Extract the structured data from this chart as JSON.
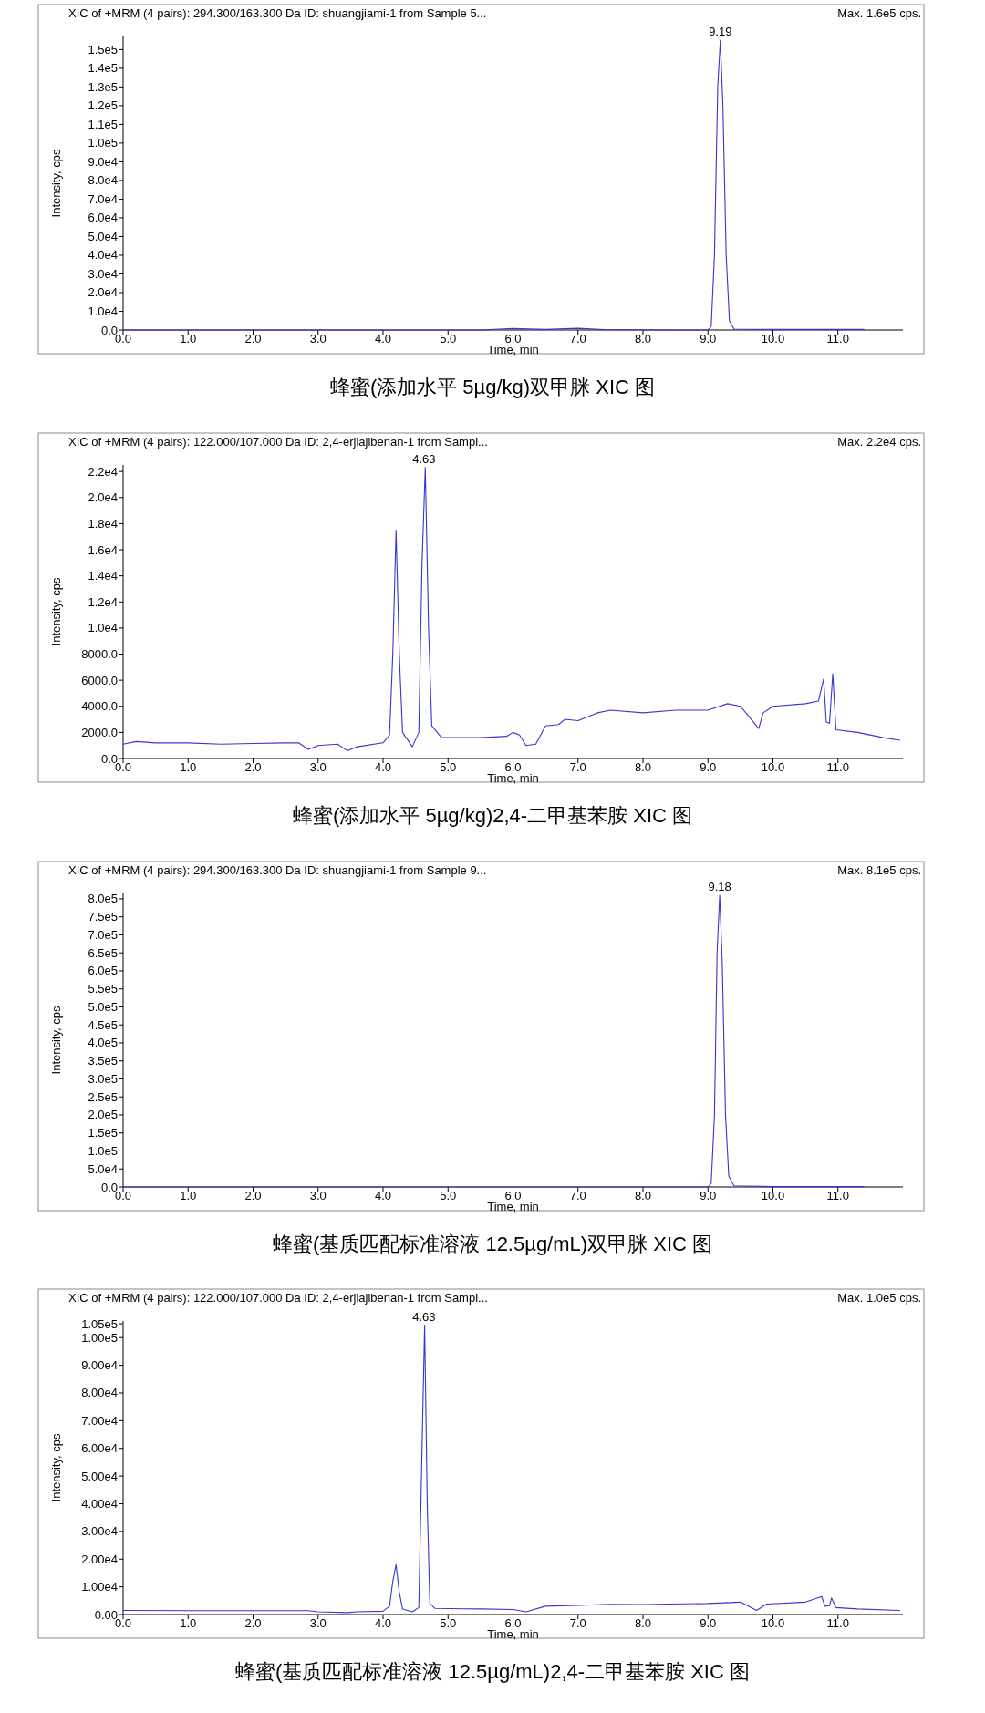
{
  "chart_data": [
    {
      "type": "line",
      "title": "蜂蜜(添加水平 5µg/kg)双甲脒 XIC 图",
      "subtitle": "XIC of +MRM (4 pairs): 294.300/163.300 Da ID: shuangjiami-1 from Sample 5...",
      "xlabel": "Time, min",
      "ylabel": "Intensity, cps",
      "annotations": [
        "Max. 1.6e5 cps.",
        {
          "text": "9.19",
          "x": 9.19,
          "y": 155000
        }
      ],
      "xlim": [
        0,
        12
      ],
      "ylim": [
        0,
        157000
      ],
      "xticks": [
        {
          "value": 0,
          "label": "0.0"
        },
        {
          "value": 1,
          "label": "1.0"
        },
        {
          "value": 2,
          "label": "2.0"
        },
        {
          "value": 3,
          "label": "3.0"
        },
        {
          "value": 4,
          "label": "4.0"
        },
        {
          "value": 5,
          "label": "5.0"
        },
        {
          "value": 6,
          "label": "6.0"
        },
        {
          "value": 7,
          "label": "7.0"
        },
        {
          "value": 8,
          "label": "8.0"
        },
        {
          "value": 9,
          "label": "9.0"
        },
        {
          "value": 10,
          "label": "10.0"
        },
        {
          "value": 11,
          "label": "11.0"
        }
      ],
      "yticks": [
        {
          "value": 0,
          "label": "0.0"
        },
        {
          "value": 10000,
          "label": "1.0e4"
        },
        {
          "value": 20000,
          "label": "2.0e4"
        },
        {
          "value": 30000,
          "label": "3.0e4"
        },
        {
          "value": 40000,
          "label": "4.0e4"
        },
        {
          "value": 50000,
          "label": "5.0e4"
        },
        {
          "value": 60000,
          "label": "6.0e4"
        },
        {
          "value": 70000,
          "label": "7.0e4"
        },
        {
          "value": 80000,
          "label": "8.0e4"
        },
        {
          "value": 90000,
          "label": "9.0e4"
        },
        {
          "value": 100000,
          "label": "1.0e5"
        },
        {
          "value": 110000,
          "label": "1.1e5"
        },
        {
          "value": 120000,
          "label": "1.2e5"
        },
        {
          "value": 130000,
          "label": "1.3e5"
        },
        {
          "value": 140000,
          "label": "1.4e5"
        },
        {
          "value": 150000,
          "label": "1.5e5"
        }
      ],
      "series": [
        {
          "color": "#3636d0",
          "x": [
            0,
            5.5,
            6.0,
            6.5,
            7.0,
            7.4,
            8.5,
            9.0,
            9.05,
            9.1,
            9.15,
            9.19,
            9.23,
            9.28,
            9.33,
            9.4,
            10.0,
            11.4
          ],
          "values": [
            0,
            0,
            800,
            300,
            900,
            200,
            0,
            0,
            2000,
            40000,
            130000,
            155000,
            120000,
            40000,
            5000,
            500,
            300,
            300
          ]
        }
      ]
    },
    {
      "type": "line",
      "title": "蜂蜜(添加水平 5µg/kg)2,4-二甲基苯胺 XIC 图",
      "subtitle": "XIC of +MRM (4 pairs): 122.000/107.000 Da ID: 2,4-erjiajibenan-1 from Sampl...",
      "xlabel": "Time, min",
      "ylabel": "Intensity, cps",
      "annotations": [
        "Max. 2.2e4 cps.",
        {
          "text": "4.63",
          "x": 4.63,
          "y": 22300
        }
      ],
      "xlim": [
        0,
        12
      ],
      "ylim": [
        0,
        22500
      ],
      "xticks": [
        {
          "value": 0,
          "label": "0.0"
        },
        {
          "value": 1,
          "label": "1.0"
        },
        {
          "value": 2,
          "label": "2.0"
        },
        {
          "value": 3,
          "label": "3.0"
        },
        {
          "value": 4,
          "label": "4.0"
        },
        {
          "value": 5,
          "label": "5.0"
        },
        {
          "value": 6,
          "label": "6.0"
        },
        {
          "value": 7,
          "label": "7.0"
        },
        {
          "value": 8,
          "label": "8.0"
        },
        {
          "value": 9,
          "label": "9.0"
        },
        {
          "value": 10,
          "label": "10.0"
        },
        {
          "value": 11,
          "label": "11.0"
        }
      ],
      "yticks": [
        {
          "value": 0,
          "label": "0.0"
        },
        {
          "value": 2000,
          "label": "2000.0"
        },
        {
          "value": 4000,
          "label": "4000.0"
        },
        {
          "value": 6000,
          "label": "6000.0"
        },
        {
          "value": 8000,
          "label": "8000.0"
        },
        {
          "value": 10000,
          "label": "1.0e4"
        },
        {
          "value": 12000,
          "label": "1.2e4"
        },
        {
          "value": 14000,
          "label": "1.4e4"
        },
        {
          "value": 16000,
          "label": "1.6e4"
        },
        {
          "value": 18000,
          "label": "1.8e4"
        },
        {
          "value": 20000,
          "label": "2.0e4"
        },
        {
          "value": 22000,
          "label": "2.2e4"
        }
      ],
      "series": [
        {
          "color": "#3636d0",
          "x": [
            0,
            0.2,
            0.5,
            1.0,
            1.5,
            2.0,
            2.5,
            2.7,
            2.85,
            3.0,
            3.3,
            3.45,
            3.6,
            4.0,
            4.1,
            4.15,
            4.2,
            4.25,
            4.3,
            4.45,
            4.55,
            4.6,
            4.65,
            4.7,
            4.75,
            4.9,
            5.5,
            5.9,
            6.0,
            6.1,
            6.2,
            6.35,
            6.5,
            6.7,
            6.8,
            7.0,
            7.3,
            7.5,
            8.0,
            8.5,
            9.0,
            9.3,
            9.5,
            9.6,
            9.78,
            9.85,
            10.0,
            10.5,
            10.7,
            10.78,
            10.82,
            10.87,
            10.92,
            10.97,
            11.3,
            11.7,
            11.95
          ],
          "values": [
            1100,
            1300,
            1200,
            1200,
            1100,
            1150,
            1200,
            1200,
            700,
            1000,
            1100,
            600,
            900,
            1200,
            1800,
            8000,
            17500,
            8000,
            2000,
            900,
            2000,
            15000,
            22300,
            10000,
            2500,
            1600,
            1600,
            1700,
            2000,
            1800,
            1000,
            1100,
            2500,
            2600,
            3000,
            2900,
            3500,
            3700,
            3500,
            3700,
            3700,
            4200,
            4000,
            3400,
            2300,
            3500,
            4000,
            4200,
            4400,
            6100,
            2800,
            2700,
            6500,
            2200,
            2000,
            1600,
            1400
          ]
        }
      ]
    },
    {
      "type": "line",
      "title": "蜂蜜(基质匹配标准溶液 12.5µg/mL)双甲脒 XIC 图",
      "subtitle": "XIC of +MRM (4 pairs): 294.300/163.300 Da ID: shuangjiami-1 from Sample 9...",
      "xlabel": "Time, min",
      "ylabel": "Intensity, cps",
      "annotations": [
        "Max. 8.1e5 cps.",
        {
          "text": "9.18",
          "x": 9.18,
          "y": 810000
        }
      ],
      "xlim": [
        0,
        12
      ],
      "ylim": [
        0,
        815000
      ],
      "xticks": [
        {
          "value": 0,
          "label": "0.0"
        },
        {
          "value": 1,
          "label": "1.0"
        },
        {
          "value": 2,
          "label": "2.0"
        },
        {
          "value": 3,
          "label": "3.0"
        },
        {
          "value": 4,
          "label": "4.0"
        },
        {
          "value": 5,
          "label": "5.0"
        },
        {
          "value": 6,
          "label": "6.0"
        },
        {
          "value": 7,
          "label": "7.0"
        },
        {
          "value": 8,
          "label": "8.0"
        },
        {
          "value": 9,
          "label": "9.0"
        },
        {
          "value": 10,
          "label": "10.0"
        },
        {
          "value": 11,
          "label": "11.0"
        }
      ],
      "yticks": [
        {
          "value": 0,
          "label": "0.0"
        },
        {
          "value": 50000,
          "label": "5.0e4"
        },
        {
          "value": 100000,
          "label": "1.0e5"
        },
        {
          "value": 150000,
          "label": "1.5e5"
        },
        {
          "value": 200000,
          "label": "2.0e5"
        },
        {
          "value": 250000,
          "label": "2.5e5"
        },
        {
          "value": 300000,
          "label": "3.0e5"
        },
        {
          "value": 350000,
          "label": "3.5e5"
        },
        {
          "value": 400000,
          "label": "4.0e5"
        },
        {
          "value": 450000,
          "label": "4.5e5"
        },
        {
          "value": 500000,
          "label": "5.0e5"
        },
        {
          "value": 550000,
          "label": "5.5e5"
        },
        {
          "value": 600000,
          "label": "6.0e5"
        },
        {
          "value": 650000,
          "label": "6.5e5"
        },
        {
          "value": 700000,
          "label": "7.0e5"
        },
        {
          "value": 750000,
          "label": "7.5e5"
        },
        {
          "value": 800000,
          "label": "8.0e5"
        }
      ],
      "series": [
        {
          "color": "#3636d0",
          "x": [
            0,
            7.0,
            9.0,
            9.05,
            9.1,
            9.14,
            9.18,
            9.22,
            9.27,
            9.32,
            9.4,
            10.0,
            11.4
          ],
          "values": [
            0,
            0,
            0,
            10000,
            200000,
            650000,
            810000,
            620000,
            200000,
            30000,
            3000,
            1000,
            1000
          ]
        }
      ]
    },
    {
      "type": "line",
      "title": "蜂蜜(基质匹配标准溶液 12.5µg/mL)2,4-二甲基苯胺 XIC 图",
      "subtitle": "XIC of +MRM (4 pairs): 122.000/107.000 Da ID: 2,4-erjiajibenan-1 from Sampl...",
      "xlabel": "Time, min",
      "ylabel": "Intensity, cps",
      "annotations": [
        "Max. 1.0e5 cps.",
        {
          "text": "4.63",
          "x": 4.63,
          "y": 104500
        }
      ],
      "xlim": [
        0,
        12
      ],
      "ylim": [
        0,
        106000
      ],
      "xticks": [
        {
          "value": 0,
          "label": "0.0"
        },
        {
          "value": 1,
          "label": "1.0"
        },
        {
          "value": 2,
          "label": "2.0"
        },
        {
          "value": 3,
          "label": "3.0"
        },
        {
          "value": 4,
          "label": "4.0"
        },
        {
          "value": 5,
          "label": "5.0"
        },
        {
          "value": 6,
          "label": "6.0"
        },
        {
          "value": 7,
          "label": "7.0"
        },
        {
          "value": 8,
          "label": "8.0"
        },
        {
          "value": 9,
          "label": "9.0"
        },
        {
          "value": 10,
          "label": "10.0"
        },
        {
          "value": 11,
          "label": "11.0"
        }
      ],
      "yticks": [
        {
          "value": 0,
          "label": "0.00"
        },
        {
          "value": 10000,
          "label": "1.00e4"
        },
        {
          "value": 20000,
          "label": "2.00e4"
        },
        {
          "value": 30000,
          "label": "3.00e4"
        },
        {
          "value": 40000,
          "label": "4.00e4"
        },
        {
          "value": 50000,
          "label": "5.00e4"
        },
        {
          "value": 60000,
          "label": "6.00e4"
        },
        {
          "value": 70000,
          "label": "7.00e4"
        },
        {
          "value": 80000,
          "label": "8.00e4"
        },
        {
          "value": 90000,
          "label": "9.00e4"
        },
        {
          "value": 100000,
          "label": "1.00e5"
        },
        {
          "value": 105000,
          "label": "1.05e5"
        }
      ],
      "series": [
        {
          "color": "#3636d0",
          "x": [
            0,
            1.0,
            2.0,
            2.85,
            3.0,
            3.45,
            3.6,
            4.0,
            4.1,
            4.15,
            4.2,
            4.25,
            4.3,
            4.45,
            4.55,
            4.6,
            4.64,
            4.68,
            4.72,
            4.8,
            5.5,
            6.0,
            6.2,
            6.5,
            7.0,
            7.5,
            8.0,
            9.0,
            9.5,
            9.75,
            9.9,
            10.5,
            10.75,
            10.8,
            10.87,
            10.9,
            10.97,
            11.3,
            11.95
          ],
          "values": [
            1500,
            1400,
            1400,
            1400,
            1000,
            700,
            1000,
            1200,
            3000,
            12000,
            18000,
            8000,
            2000,
            1000,
            2500,
            60000,
            104500,
            40000,
            4000,
            2200,
            2000,
            1800,
            1000,
            3000,
            3300,
            3700,
            3600,
            4000,
            4500,
            1500,
            3800,
            4500,
            6500,
            3000,
            3200,
            6000,
            2500,
            2000,
            1500
          ]
        }
      ]
    }
  ]
}
